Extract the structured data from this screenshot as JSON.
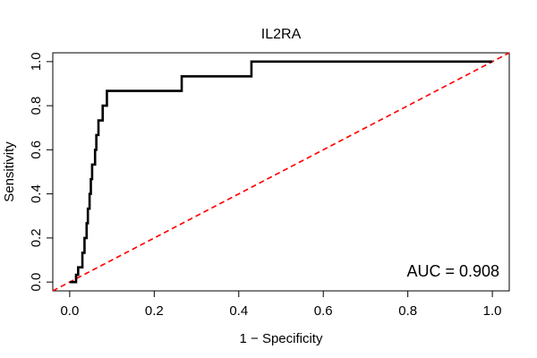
{
  "chart_data": {
    "type": "line",
    "title": "IL2RA",
    "xlabel": "1 − Specificity",
    "ylabel": "Sensitivity",
    "xlim": [
      -0.04,
      1.04
    ],
    "ylim": [
      -0.04,
      1.04
    ],
    "x_ticks": [
      0,
      0.2,
      0.4,
      0.6,
      0.8,
      1
    ],
    "x_tick_labels": [
      "0.0",
      "0.2",
      "0.4",
      "0.6",
      "0.8",
      "1.0"
    ],
    "y_ticks": [
      0,
      0.2,
      0.4,
      0.6,
      0.8,
      1
    ],
    "y_tick_labels": [
      "0.0",
      "0.2",
      "0.4",
      "0.6",
      "0.8",
      "1.0"
    ],
    "annotation": "AUC = 0.908",
    "series": [
      {
        "name": "ROC curve",
        "color": "#000000",
        "points": [
          [
            0.0,
            0.0
          ],
          [
            0.015,
            0.0
          ],
          [
            0.015,
            0.033
          ],
          [
            0.02,
            0.033
          ],
          [
            0.02,
            0.067
          ],
          [
            0.03,
            0.067
          ],
          [
            0.03,
            0.133
          ],
          [
            0.035,
            0.133
          ],
          [
            0.035,
            0.2
          ],
          [
            0.04,
            0.2
          ],
          [
            0.04,
            0.267
          ],
          [
            0.043,
            0.267
          ],
          [
            0.043,
            0.333
          ],
          [
            0.047,
            0.333
          ],
          [
            0.047,
            0.4
          ],
          [
            0.05,
            0.4
          ],
          [
            0.05,
            0.467
          ],
          [
            0.053,
            0.467
          ],
          [
            0.053,
            0.533
          ],
          [
            0.06,
            0.533
          ],
          [
            0.06,
            0.6
          ],
          [
            0.063,
            0.6
          ],
          [
            0.063,
            0.667
          ],
          [
            0.068,
            0.667
          ],
          [
            0.068,
            0.733
          ],
          [
            0.078,
            0.733
          ],
          [
            0.078,
            0.8
          ],
          [
            0.088,
            0.8
          ],
          [
            0.088,
            0.867
          ],
          [
            0.265,
            0.867
          ],
          [
            0.265,
            0.933
          ],
          [
            0.43,
            0.933
          ],
          [
            0.43,
            1.0
          ],
          [
            1.0,
            1.0
          ]
        ]
      },
      {
        "name": "Reference diagonal",
        "color": "#ff0000",
        "style": "dashed",
        "points": [
          [
            -0.04,
            -0.04
          ],
          [
            1.04,
            1.04
          ]
        ]
      }
    ]
  }
}
